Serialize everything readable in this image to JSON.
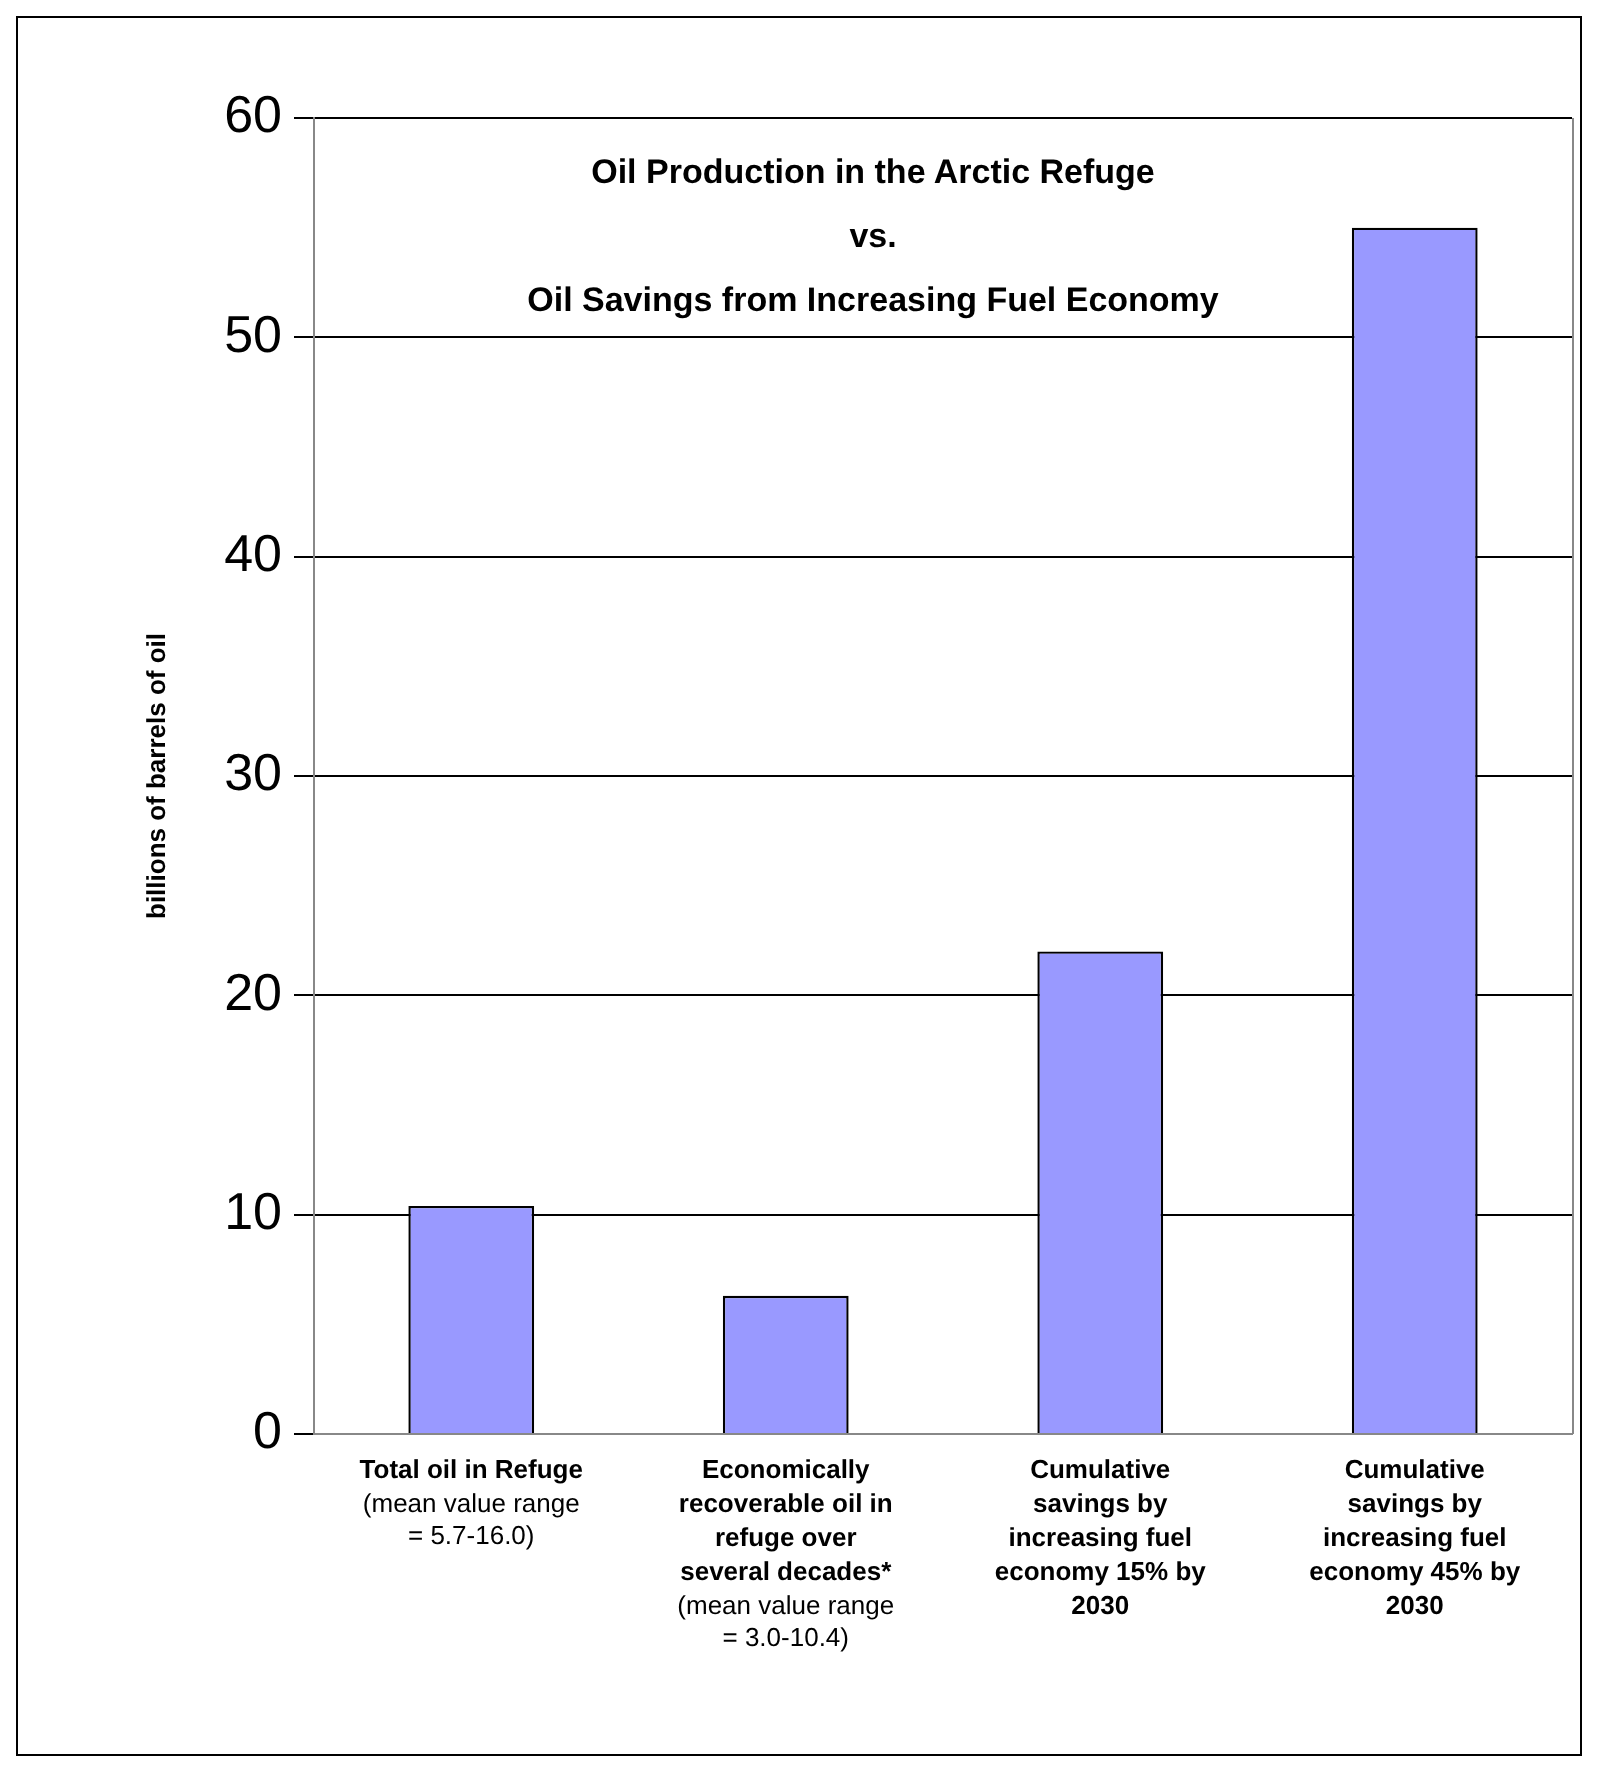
{
  "chart_data": {
    "type": "bar",
    "title": "Oil Production in the Arctic Refuge\nvs.\nOil Savings from Increasing Fuel Economy",
    "ylabel": "billions of barrels of oil",
    "categories": [
      "Total oil in Refuge (mean value range = 5.7-16.0)",
      "Economically recoverable oil in refuge over several decades* (mean value range = 3.0-10.4)",
      "Cumulative savings by increasing fuel economy 15% by 2030",
      "Cumulative savings by increasing fuel economy 45% by 2030"
    ],
    "values": [
      10.4,
      6.3,
      22,
      55
    ],
    "color": "#9999ff",
    "ylim": [
      0,
      60
    ],
    "yticks": [
      0,
      10,
      20,
      30,
      40,
      50,
      60
    ],
    "grid": "y",
    "legend": false
  }
}
